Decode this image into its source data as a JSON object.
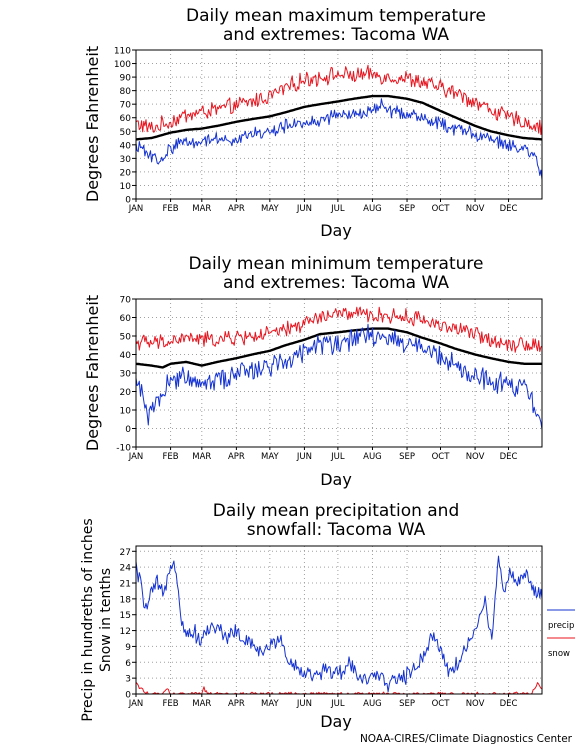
{
  "credit": "NOAA-CIRES/Climate Diagnostics Center",
  "colors": {
    "mean": "#000000",
    "high_extreme": "#e8141e",
    "low_extreme": "#1432d2",
    "precip": "#1432d2",
    "snow": "#e8141e",
    "grid": "#a0a0a0",
    "background": "#ffffff"
  },
  "chart_data": [
    {
      "type": "line",
      "title": [
        "Daily mean maximum temperature",
        "and extremes: Tacoma WA"
      ],
      "xlabel": "Day",
      "ylabel": "Degrees Fahrenheit",
      "x_tick_labels": [
        "JAN",
        "FEB",
        "MAR",
        "APR",
        "MAY",
        "JUN",
        "JUL",
        "AUG",
        "SEP",
        "OCT",
        "NOV",
        "DEC"
      ],
      "x_range": [
        1,
        365
      ],
      "ylim": [
        0,
        110
      ],
      "y_ticks": [
        0,
        10,
        20,
        30,
        40,
        50,
        60,
        70,
        80,
        90,
        100,
        110
      ],
      "grid": true,
      "series": [
        {
          "role": "extreme_high",
          "color": "#e8141e",
          "keys": [
            [
              1,
              56
            ],
            [
              15,
              52
            ],
            [
              32,
              57
            ],
            [
              46,
              62
            ],
            [
              60,
              64
            ],
            [
              74,
              66
            ],
            [
              91,
              69
            ],
            [
              105,
              72
            ],
            [
              121,
              76
            ],
            [
              135,
              82
            ],
            [
              152,
              88
            ],
            [
              166,
              90
            ],
            [
              182,
              92
            ],
            [
              196,
              91
            ],
            [
              213,
              92
            ],
            [
              227,
              90
            ],
            [
              244,
              89
            ],
            [
              258,
              86
            ],
            [
              274,
              82
            ],
            [
              288,
              78
            ],
            [
              305,
              72
            ],
            [
              319,
              66
            ],
            [
              335,
              60
            ],
            [
              349,
              57
            ],
            [
              365,
              52
            ]
          ],
          "jitter": 5
        },
        {
          "role": "mean",
          "color": "#000000",
          "keys": [
            [
              1,
              44
            ],
            [
              15,
              45
            ],
            [
              32,
              49
            ],
            [
              46,
              51
            ],
            [
              60,
              52
            ],
            [
              74,
              54
            ],
            [
              91,
              57
            ],
            [
              105,
              59
            ],
            [
              121,
              61
            ],
            [
              135,
              64
            ],
            [
              152,
              68
            ],
            [
              166,
              70
            ],
            [
              182,
              72
            ],
            [
              196,
              74
            ],
            [
              213,
              76
            ],
            [
              227,
              76
            ],
            [
              244,
              74
            ],
            [
              258,
              71
            ],
            [
              274,
              65
            ],
            [
              288,
              60
            ],
            [
              305,
              54
            ],
            [
              319,
              50
            ],
            [
              335,
              47
            ],
            [
              349,
              45
            ],
            [
              365,
              44
            ]
          ],
          "jitter": 0
        },
        {
          "role": "extreme_low",
          "color": "#1432d2",
          "keys": [
            [
              1,
              38
            ],
            [
              12,
              35
            ],
            [
              22,
              26
            ],
            [
              30,
              36
            ],
            [
              42,
              43
            ],
            [
              52,
              42
            ],
            [
              60,
              43
            ],
            [
              75,
              45
            ],
            [
              91,
              44
            ],
            [
              105,
              48
            ],
            [
              121,
              49
            ],
            [
              135,
              54
            ],
            [
              152,
              56
            ],
            [
              166,
              58
            ],
            [
              182,
              62
            ],
            [
              196,
              62
            ],
            [
              213,
              65
            ],
            [
              220,
              70
            ],
            [
              227,
              65
            ],
            [
              244,
              63
            ],
            [
              258,
              60
            ],
            [
              274,
              55
            ],
            [
              288,
              52
            ],
            [
              305,
              48
            ],
            [
              319,
              44
            ],
            [
              335,
              40
            ],
            [
              349,
              36
            ],
            [
              360,
              30
            ],
            [
              365,
              13
            ]
          ],
          "jitter": 4
        }
      ]
    },
    {
      "type": "line",
      "title": [
        "Daily mean minimum temperature",
        "and extremes: Tacoma WA"
      ],
      "xlabel": "Day",
      "ylabel": "Degrees Fahrenheit",
      "x_tick_labels": [
        "JAN",
        "FEB",
        "MAR",
        "APR",
        "MAY",
        "JUN",
        "JUL",
        "AUG",
        "SEP",
        "OCT",
        "NOV",
        "DEC"
      ],
      "x_range": [
        1,
        365
      ],
      "ylim": [
        -10,
        70
      ],
      "y_ticks": [
        -10,
        0,
        10,
        20,
        30,
        40,
        50,
        60,
        70
      ],
      "grid": true,
      "series": [
        {
          "role": "extreme_high",
          "color": "#e8141e",
          "keys": [
            [
              1,
              47
            ],
            [
              15,
              46
            ],
            [
              32,
              47
            ],
            [
              46,
              49
            ],
            [
              60,
              48
            ],
            [
              74,
              48
            ],
            [
              91,
              49
            ],
            [
              105,
              50
            ],
            [
              121,
              51
            ],
            [
              135,
              53
            ],
            [
              152,
              57
            ],
            [
              166,
              60
            ],
            [
              182,
              62
            ],
            [
              196,
              62
            ],
            [
              213,
              61
            ],
            [
              227,
              61
            ],
            [
              244,
              60
            ],
            [
              258,
              59
            ],
            [
              274,
              56
            ],
            [
              288,
              54
            ],
            [
              305,
              51
            ],
            [
              319,
              48
            ],
            [
              335,
              46
            ],
            [
              349,
              46
            ],
            [
              365,
              45
            ]
          ],
          "jitter": 3.5
        },
        {
          "role": "mean",
          "color": "#000000",
          "keys": [
            [
              1,
              35
            ],
            [
              15,
              34
            ],
            [
              25,
              33
            ],
            [
              32,
              35
            ],
            [
              46,
              36
            ],
            [
              60,
              34
            ],
            [
              74,
              36
            ],
            [
              91,
              38
            ],
            [
              105,
              40
            ],
            [
              121,
              42
            ],
            [
              135,
              45
            ],
            [
              152,
              48
            ],
            [
              166,
              51
            ],
            [
              182,
              52
            ],
            [
              196,
              53
            ],
            [
              213,
              54
            ],
            [
              227,
              54
            ],
            [
              244,
              52
            ],
            [
              258,
              49
            ],
            [
              274,
              46
            ],
            [
              288,
              43
            ],
            [
              305,
              40
            ],
            [
              319,
              38
            ],
            [
              335,
              36
            ],
            [
              349,
              35
            ],
            [
              365,
              35
            ]
          ],
          "jitter": 0
        },
        {
          "role": "extreme_low",
          "color": "#1432d2",
          "keys": [
            [
              1,
              24
            ],
            [
              8,
              18
            ],
            [
              12,
              8
            ],
            [
              20,
              16
            ],
            [
              32,
              26
            ],
            [
              46,
              28
            ],
            [
              60,
              26
            ],
            [
              74,
              27
            ],
            [
              91,
              29
            ],
            [
              105,
              32
            ],
            [
              121,
              34
            ],
            [
              135,
              38
            ],
            [
              152,
              42
            ],
            [
              166,
              46
            ],
            [
              182,
              47
            ],
            [
              196,
              48
            ],
            [
              213,
              50
            ],
            [
              227,
              49
            ],
            [
              244,
              46
            ],
            [
              258,
              44
            ],
            [
              274,
              38
            ],
            [
              288,
              33
            ],
            [
              305,
              28
            ],
            [
              319,
              25
            ],
            [
              335,
              24
            ],
            [
              349,
              22
            ],
            [
              360,
              8
            ],
            [
              365,
              3
            ]
          ],
          "jitter": 5
        }
      ]
    },
    {
      "type": "line",
      "title": [
        "Daily mean precipitation and",
        "snowfall: Tacoma WA"
      ],
      "xlabel": "Day",
      "ylabel": [
        "Precip in hundreths of inches",
        "Snow in tenths"
      ],
      "x_tick_labels": [
        "JAN",
        "FEB",
        "MAR",
        "APR",
        "MAY",
        "JUN",
        "JUL",
        "AUG",
        "SEP",
        "OCT",
        "NOV",
        "DEC"
      ],
      "x_range": [
        1,
        365
      ],
      "ylim": [
        0,
        28
      ],
      "y_ticks": [
        0,
        3,
        6,
        9,
        12,
        15,
        18,
        21,
        24,
        27
      ],
      "grid": true,
      "legend": {
        "position": "right",
        "entries": [
          "precip",
          "snow"
        ]
      },
      "series": [
        {
          "name": "precip",
          "color": "#1432d2",
          "keys": [
            [
              1,
              24
            ],
            [
              6,
              20
            ],
            [
              10,
              16
            ],
            [
              15,
              19
            ],
            [
              20,
              21
            ],
            [
              26,
              18
            ],
            [
              30,
              23
            ],
            [
              34,
              26
            ],
            [
              38,
              22
            ],
            [
              42,
              14
            ],
            [
              46,
              11
            ],
            [
              52,
              12
            ],
            [
              60,
              10
            ],
            [
              68,
              13
            ],
            [
              76,
              12
            ],
            [
              84,
              11
            ],
            [
              90,
              12
            ],
            [
              98,
              10
            ],
            [
              106,
              9
            ],
            [
              114,
              8
            ],
            [
              122,
              9
            ],
            [
              130,
              11
            ],
            [
              138,
              6
            ],
            [
              146,
              5
            ],
            [
              154,
              4
            ],
            [
              162,
              3
            ],
            [
              170,
              5
            ],
            [
              178,
              4
            ],
            [
              186,
              4
            ],
            [
              194,
              6
            ],
            [
              202,
              3
            ],
            [
              210,
              3
            ],
            [
              218,
              3
            ],
            [
              226,
              2
            ],
            [
              234,
              3
            ],
            [
              242,
              3
            ],
            [
              250,
              5
            ],
            [
              258,
              7
            ],
            [
              266,
              11
            ],
            [
              274,
              9
            ],
            [
              282,
              4
            ],
            [
              290,
              6
            ],
            [
              298,
              9
            ],
            [
              306,
              13
            ],
            [
              314,
              17
            ],
            [
              320,
              10
            ],
            [
              323,
              19
            ],
            [
              326,
              27
            ],
            [
              330,
              19
            ],
            [
              336,
              23
            ],
            [
              344,
              21
            ],
            [
              350,
              23
            ],
            [
              358,
              20
            ],
            [
              365,
              18
            ]
          ],
          "jitter": 1.3
        },
        {
          "name": "snow",
          "color": "#e8141e",
          "keys": [
            [
              1,
              2
            ],
            [
              5,
              1
            ],
            [
              9,
              0.5
            ],
            [
              12,
              0
            ],
            [
              25,
              0
            ],
            [
              29,
              1
            ],
            [
              32,
              0
            ],
            [
              60,
              0
            ],
            [
              62,
              1
            ],
            [
              66,
              0
            ],
            [
              355,
              0
            ],
            [
              358,
              1
            ],
            [
              361,
              2
            ],
            [
              365,
              1
            ]
          ],
          "jitter": 0.3
        }
      ]
    }
  ]
}
